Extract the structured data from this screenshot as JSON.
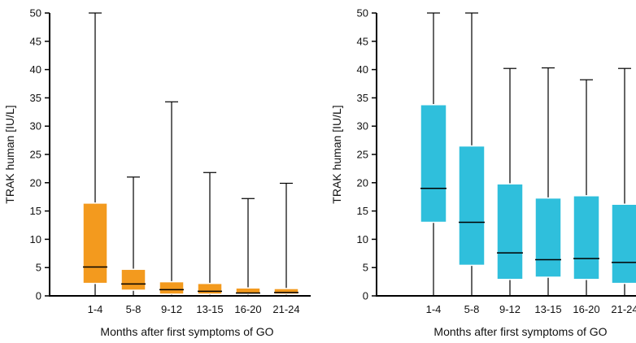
{
  "chart_data": [
    {
      "type": "box",
      "xlabel": "Months after first symptoms of GO",
      "ylabel": "TRAK human [IU/L]",
      "ylim": [
        0,
        50
      ],
      "yticks": [
        0,
        5,
        10,
        15,
        20,
        25,
        30,
        35,
        40,
        45,
        50
      ],
      "grid": false,
      "categories": [
        "1-4",
        "5-8",
        "9-12",
        "13-15",
        "16-20",
        "21-24"
      ],
      "color": "#f39a1e",
      "boxes": [
        {
          "min": 0,
          "q1": 2.2,
          "median": 5.1,
          "q3": 16.4,
          "max": 50.0
        },
        {
          "min": 0,
          "q1": 1.0,
          "median": 2.1,
          "q3": 4.7,
          "max": 21.0
        },
        {
          "min": 0,
          "q1": 0.3,
          "median": 1.1,
          "q3": 2.5,
          "max": 34.3
        },
        {
          "min": 0,
          "q1": 0.3,
          "median": 0.8,
          "q3": 2.2,
          "max": 21.8
        },
        {
          "min": 0,
          "q1": 0.3,
          "median": 0.5,
          "q3": 1.4,
          "max": 17.2
        },
        {
          "min": 0,
          "q1": 0.3,
          "median": 0.6,
          "q3": 1.3,
          "max": 19.9
        }
      ]
    },
    {
      "type": "box",
      "xlabel": "Months after first symptoms of GO",
      "ylabel": "TRAK human [IU/L]",
      "ylim": [
        0,
        50
      ],
      "yticks": [
        0,
        5,
        10,
        15,
        20,
        25,
        30,
        35,
        40,
        45,
        50
      ],
      "grid": false,
      "categories": [
        "1-4",
        "5-8",
        "9-12",
        "13-15",
        "16-20",
        "21-24"
      ],
      "color": "#2fbfdc",
      "boxes": [
        {
          "min": 0,
          "q1": 13.0,
          "median": 19.0,
          "q3": 33.8,
          "max": 50.0
        },
        {
          "min": 0,
          "q1": 5.4,
          "median": 13.0,
          "q3": 26.5,
          "max": 50.0
        },
        {
          "min": 0,
          "q1": 2.9,
          "median": 7.6,
          "q3": 19.8,
          "max": 40.2
        },
        {
          "min": 0,
          "q1": 3.3,
          "median": 6.4,
          "q3": 17.3,
          "max": 40.3
        },
        {
          "min": 0,
          "q1": 2.9,
          "median": 6.6,
          "q3": 17.7,
          "max": 38.2
        },
        {
          "min": 0,
          "q1": 2.2,
          "median": 5.9,
          "q3": 16.2,
          "max": 40.2
        }
      ]
    }
  ]
}
